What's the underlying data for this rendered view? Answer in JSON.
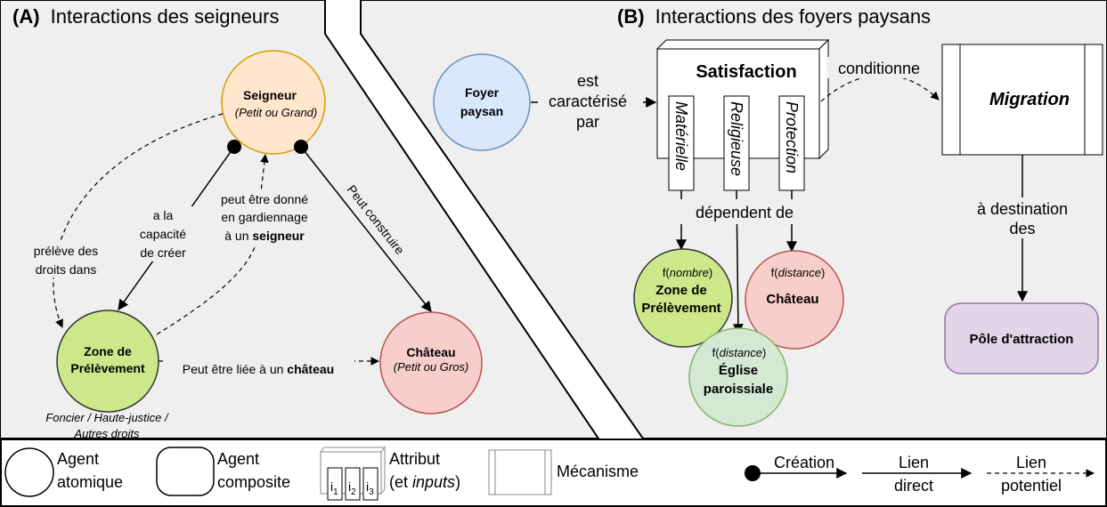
{
  "panel_a": {
    "title_letter": "(A)",
    "title": "Interactions des seigneurs",
    "seigneur": {
      "name": "Seigneur",
      "sub": "(Petit ou Grand)"
    },
    "zone": {
      "line1": "Zone de",
      "line2": "Prélèvement",
      "note1": "Foncier / Haute-justice /",
      "note2": "Autres droits"
    },
    "chateau": {
      "name": "Château",
      "sub": "(Petit ou Gros)"
    },
    "edge_preleve": [
      "prélève des",
      "droits dans"
    ],
    "edge_capacite": [
      "a la",
      "capacité",
      "de créer"
    ],
    "edge_gardiennage": [
      "peut être donné",
      "en gardiennage",
      "à un "
    ],
    "edge_gardiennage_bold": "seigneur",
    "edge_construire": "Peut construire",
    "edge_liee": "Peut être liée à un ",
    "edge_liee_bold": "château"
  },
  "panel_b": {
    "title_letter": "(B)",
    "title": "Interactions des foyers paysans",
    "foyer": [
      "Foyer",
      "paysan"
    ],
    "est_caracterise_par": [
      "est",
      "caractérisé",
      "par"
    ],
    "satisfaction": "Satisfaction",
    "sat_inputs": [
      "Matérielle",
      "Religieuse",
      "Protection"
    ],
    "conditionne": "conditionne",
    "migration": "Migration",
    "destination": [
      "à destination",
      "des"
    ],
    "pole": "Pôle d'attraction",
    "dependent_de": "dépendent de",
    "zone": {
      "fn": "f(",
      "arg": "nombre",
      "close": ")",
      "line1": "Zone de",
      "line2": "Prélèvement"
    },
    "chateau": {
      "fn": "f(",
      "arg": "distance",
      "close": ")",
      "name": "Château"
    },
    "eglise": {
      "fn": "f(",
      "arg": "distance",
      "close": ")",
      "line1": "Église",
      "line2": "paroissiale"
    }
  },
  "legend": {
    "agent_atomique": [
      "Agent",
      "atomique"
    ],
    "agent_composite": [
      "Agent",
      "composite"
    ],
    "attribut": [
      "Attribut",
      "(et ",
      "inputs",
      ")"
    ],
    "attr_inputs": [
      "i",
      "1",
      "i",
      "2",
      "i",
      "3"
    ],
    "mecanisme": "Mécanisme",
    "creation": "Création",
    "lien_direct": [
      "Lien",
      "direct"
    ],
    "lien_potentiel": [
      "Lien",
      "potentiel"
    ]
  },
  "colors": {
    "panel_bg": "#efefef",
    "seigneur_fill": "#ffe6cc",
    "seigneur_stroke": "#d79b00",
    "zone_fill": "#cde88a",
    "zone_stroke": "#333333",
    "chateau_fill": "#f8cecc",
    "chateau_stroke": "#b85450",
    "foyer_fill": "#dae8fc",
    "foyer_stroke": "#6c8ebf",
    "eglise_fill": "#d5e8d4",
    "eglise_stroke": "#82b366",
    "pole_fill": "#e1d5e7",
    "pole_stroke": "#9673a6"
  }
}
